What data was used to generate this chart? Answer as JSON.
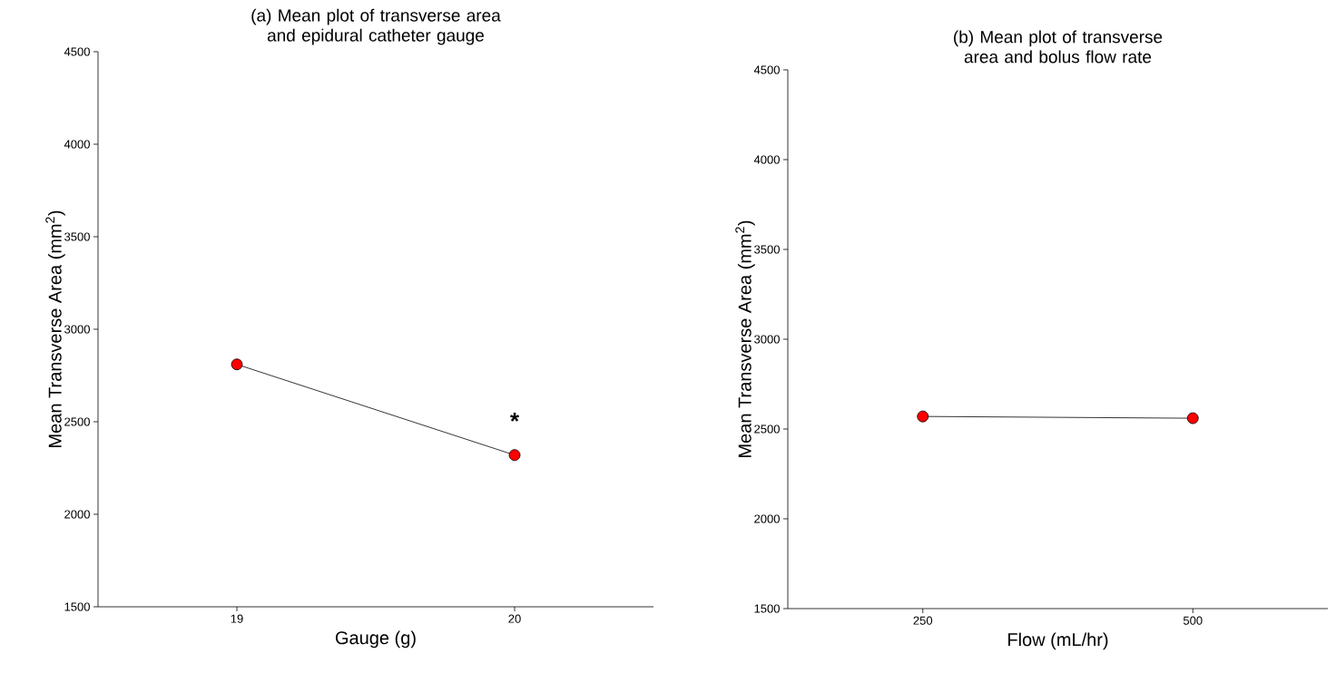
{
  "chart_data": [
    {
      "type": "line",
      "title": "(a) Mean plot of transverse area and epidural catheter gauge",
      "xlabel": "Gauge (g)",
      "ylabel": "Mean Transverse Area (mm$^{2}$)",
      "categories": [
        "19",
        "20"
      ],
      "series": [
        {
          "color": "#ff0000",
          "values": [
            2810,
            2320
          ]
        }
      ],
      "ylim": [
        1500,
        4500
      ],
      "yticks": [
        1500,
        2000,
        2500,
        3000,
        3500,
        4000,
        4500
      ],
      "marker": "circle",
      "line_style": "solid",
      "annotations": [
        "*"
      ]
    },
    {
      "type": "line",
      "title": "(b) Mean plot of transverse area and bolus flow rate",
      "xlabel": "Flow (mL/hr)",
      "ylabel": "Mean Transverse Area (mm$^{2}$)",
      "categories": [
        "250",
        "500"
      ],
      "series": [
        {
          "color": "#ff0000",
          "values": [
            2570,
            2560
          ]
        }
      ],
      "ylim": [
        1500,
        4500
      ],
      "yticks": [
        1500,
        2000,
        2500,
        3000,
        3500,
        4000,
        4500
      ],
      "marker": "circle",
      "line_style": "solid"
    }
  ]
}
